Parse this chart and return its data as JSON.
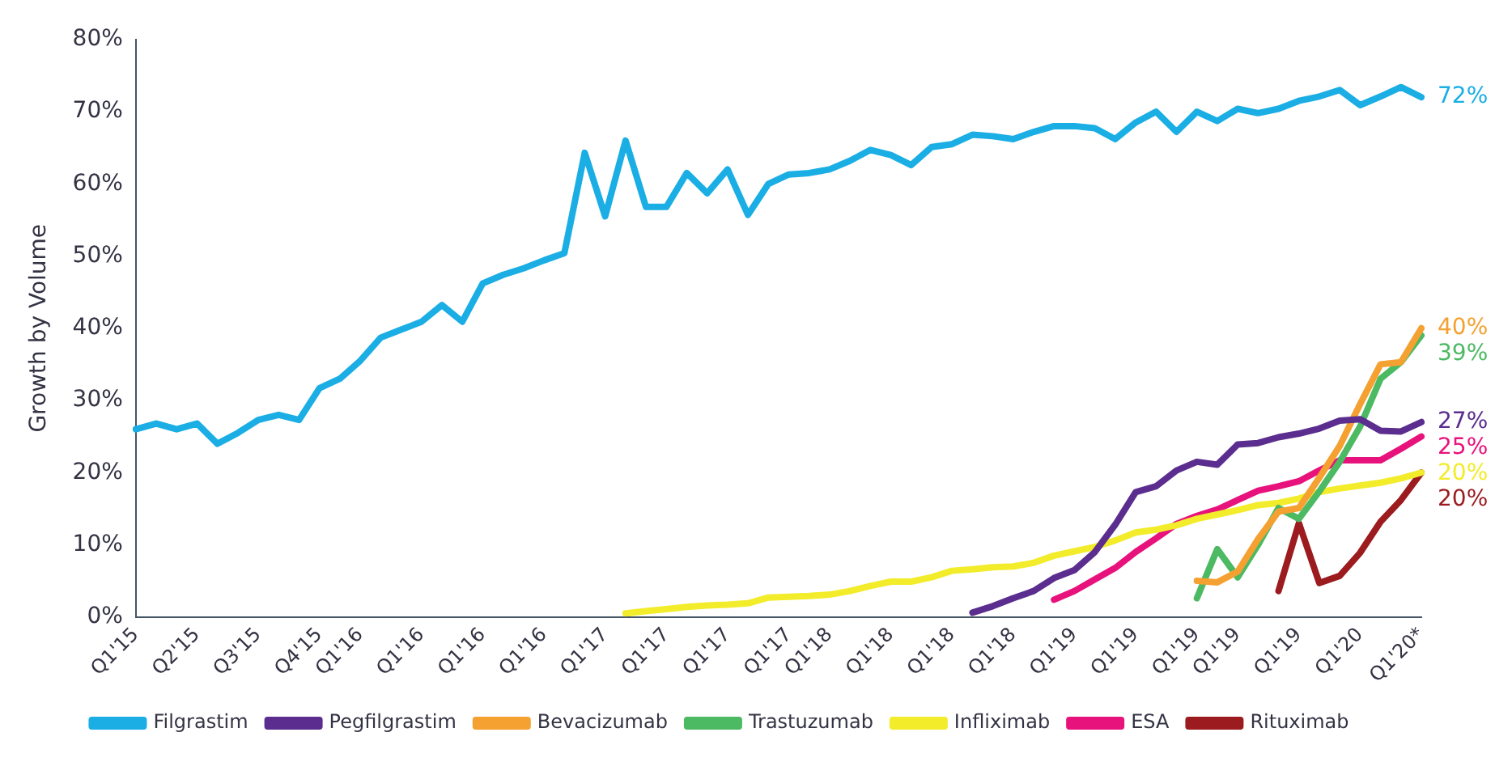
{
  "chart_data": {
    "type": "line",
    "ylabel": "Growth by Volume",
    "categories": [
      "Q1'15",
      null,
      null,
      "Q2'15",
      null,
      null,
      "Q3'15",
      null,
      null,
      "Q4'15",
      null,
      "Q1'16",
      null,
      null,
      "Q1'16",
      null,
      null,
      "Q1'16",
      null,
      null,
      "Q1'16",
      null,
      null,
      "Q1'17",
      null,
      null,
      "Q1'17",
      null,
      null,
      "Q1'17",
      null,
      null,
      "Q1'17",
      null,
      "Q1'18",
      null,
      null,
      "Q1'18",
      null,
      null,
      "Q1'18",
      null,
      null,
      "Q1'18",
      null,
      null,
      "Q1'19",
      null,
      null,
      "Q1'19",
      null,
      null,
      "Q1'19",
      null,
      "Q1'19",
      null,
      null,
      "Q1'19",
      null,
      null,
      "Q1'20",
      null,
      null,
      "Q1'20*"
    ],
    "series": [
      {
        "name": "Filgrastim",
        "color": "#1aaee5",
        "values": [
          26,
          26.8,
          26,
          26.8,
          24,
          25.5,
          27.3,
          28,
          27.3,
          31.7,
          33,
          35.5,
          38.7,
          39.8,
          40.9,
          43.2,
          40.9,
          46.2,
          47.4,
          48.3,
          49.4,
          50.4,
          64.3,
          55.5,
          66,
          56.8,
          56.8,
          61.5,
          58.7,
          62,
          55.7,
          60,
          61.3,
          61.5,
          62,
          63.2,
          64.7,
          64,
          62.6,
          65.1,
          65.5,
          66.8,
          66.6,
          66.2,
          67.2,
          68,
          68,
          67.7,
          66.2,
          68.5,
          70,
          67.2,
          70,
          68.7,
          70.4,
          69.8,
          70.4,
          71.5,
          72.1,
          73,
          70.9,
          72.1,
          73.4,
          72
        ]
      },
      {
        "name": "Pegfilgrastim",
        "color": "#5b2d8e",
        "values": [
          null,
          null,
          null,
          null,
          null,
          null,
          null,
          null,
          null,
          null,
          null,
          null,
          null,
          null,
          null,
          null,
          null,
          null,
          null,
          null,
          null,
          null,
          null,
          null,
          null,
          null,
          null,
          null,
          null,
          null,
          null,
          null,
          null,
          null,
          null,
          null,
          null,
          null,
          null,
          null,
          null,
          0.6,
          1.5,
          2.6,
          3.6,
          5.4,
          6.5,
          9,
          12.8,
          17.3,
          18.1,
          20.3,
          21.5,
          21.1,
          23.9,
          24.1,
          24.9,
          25.4,
          26.1,
          27.2,
          27.4,
          25.8,
          25.7,
          27
        ]
      },
      {
        "name": "Bevacizumab",
        "color": "#f4a132",
        "values": [
          null,
          null,
          null,
          null,
          null,
          null,
          null,
          null,
          null,
          null,
          null,
          null,
          null,
          null,
          null,
          null,
          null,
          null,
          null,
          null,
          null,
          null,
          null,
          null,
          null,
          null,
          null,
          null,
          null,
          null,
          null,
          null,
          null,
          null,
          null,
          null,
          null,
          null,
          null,
          null,
          null,
          null,
          null,
          null,
          null,
          null,
          null,
          null,
          null,
          null,
          null,
          null,
          5,
          4.8,
          6.3,
          10.8,
          14.6,
          15.1,
          19.3,
          23.7,
          29.5,
          35,
          35.3,
          40
        ]
      },
      {
        "name": "Trastuzumab",
        "color": "#4cb963",
        "values": [
          null,
          null,
          null,
          null,
          null,
          null,
          null,
          null,
          null,
          null,
          null,
          null,
          null,
          null,
          null,
          null,
          null,
          null,
          null,
          null,
          null,
          null,
          null,
          null,
          null,
          null,
          null,
          null,
          null,
          null,
          null,
          null,
          null,
          null,
          null,
          null,
          null,
          null,
          null,
          null,
          null,
          null,
          null,
          null,
          null,
          null,
          null,
          null,
          null,
          null,
          null,
          null,
          2.6,
          9.4,
          5.5,
          10,
          15.1,
          13.6,
          17.4,
          21.5,
          26.4,
          33,
          35.3,
          39
        ]
      },
      {
        "name": "Infliximab",
        "color": "#f2ec2a",
        "values": [
          null,
          null,
          null,
          null,
          null,
          null,
          null,
          null,
          null,
          null,
          null,
          null,
          null,
          null,
          null,
          null,
          null,
          null,
          null,
          null,
          null,
          null,
          null,
          null,
          0.5,
          0.8,
          1.1,
          1.4,
          1.6,
          1.7,
          1.9,
          2.7,
          2.8,
          2.9,
          3.1,
          3.6,
          4.3,
          4.9,
          4.9,
          5.5,
          6.4,
          6.6,
          6.9,
          7,
          7.5,
          8.5,
          9.1,
          9.7,
          10.6,
          11.7,
          12.1,
          12.7,
          13.6,
          14.2,
          14.8,
          15.5,
          15.8,
          16.4,
          17.3,
          17.8,
          18.2,
          18.6,
          19.2,
          20
        ]
      },
      {
        "name": "ESA",
        "color": "#e8127c",
        "values": [
          null,
          null,
          null,
          null,
          null,
          null,
          null,
          null,
          null,
          null,
          null,
          null,
          null,
          null,
          null,
          null,
          null,
          null,
          null,
          null,
          null,
          null,
          null,
          null,
          null,
          null,
          null,
          null,
          null,
          null,
          null,
          null,
          null,
          null,
          null,
          null,
          null,
          null,
          null,
          null,
          null,
          null,
          null,
          null,
          null,
          2.4,
          3.6,
          5.2,
          6.8,
          9,
          10.9,
          12.9,
          14,
          14.9,
          16.2,
          17.5,
          18.1,
          18.8,
          20.3,
          21.7,
          21.7,
          21.7,
          23.3,
          25
        ]
      },
      {
        "name": "Rituximab",
        "color": "#9b1b1f",
        "values": [
          null,
          null,
          null,
          null,
          null,
          null,
          null,
          null,
          null,
          null,
          null,
          null,
          null,
          null,
          null,
          null,
          null,
          null,
          null,
          null,
          null,
          null,
          null,
          null,
          null,
          null,
          null,
          null,
          null,
          null,
          null,
          null,
          null,
          null,
          null,
          null,
          null,
          null,
          null,
          null,
          null,
          null,
          null,
          null,
          null,
          null,
          null,
          null,
          null,
          null,
          null,
          null,
          null,
          null,
          null,
          null,
          3.6,
          13,
          4.7,
          5.7,
          8.9,
          13.2,
          16.2,
          20
        ]
      }
    ],
    "ylim": [
      0,
      80
    ],
    "yticks": [
      {
        "value": 0,
        "label": "0%"
      },
      {
        "value": 10,
        "label": "10%"
      },
      {
        "value": 20,
        "label": "20%"
      },
      {
        "value": 30,
        "label": "30%"
      },
      {
        "value": 40,
        "label": "40%"
      },
      {
        "value": 50,
        "label": "50%"
      },
      {
        "value": 60,
        "label": "60%"
      },
      {
        "value": 70,
        "label": "70%"
      },
      {
        "value": 80,
        "label": "80%"
      }
    ],
    "annotations": [
      {
        "text": "72%",
        "x": "Q1'20*",
        "y": 72
      },
      {
        "text": "40%",
        "x": "Q1'20*",
        "y": 40
      },
      {
        "text": "39%",
        "x": "Q1'20*",
        "y": 39
      },
      {
        "text": "27%",
        "x": "Q1'20*",
        "y": 27
      },
      {
        "text": "25%",
        "x": "Q1'20*",
        "y": 25
      },
      {
        "text": "20%",
        "x": "Q1'20*",
        "y": 20
      },
      {
        "text": "20%",
        "x": "Q1'20*",
        "y": 20
      }
    ],
    "grid": false,
    "legend": "bottom",
    "marker": "none",
    "line_style": "solid"
  }
}
